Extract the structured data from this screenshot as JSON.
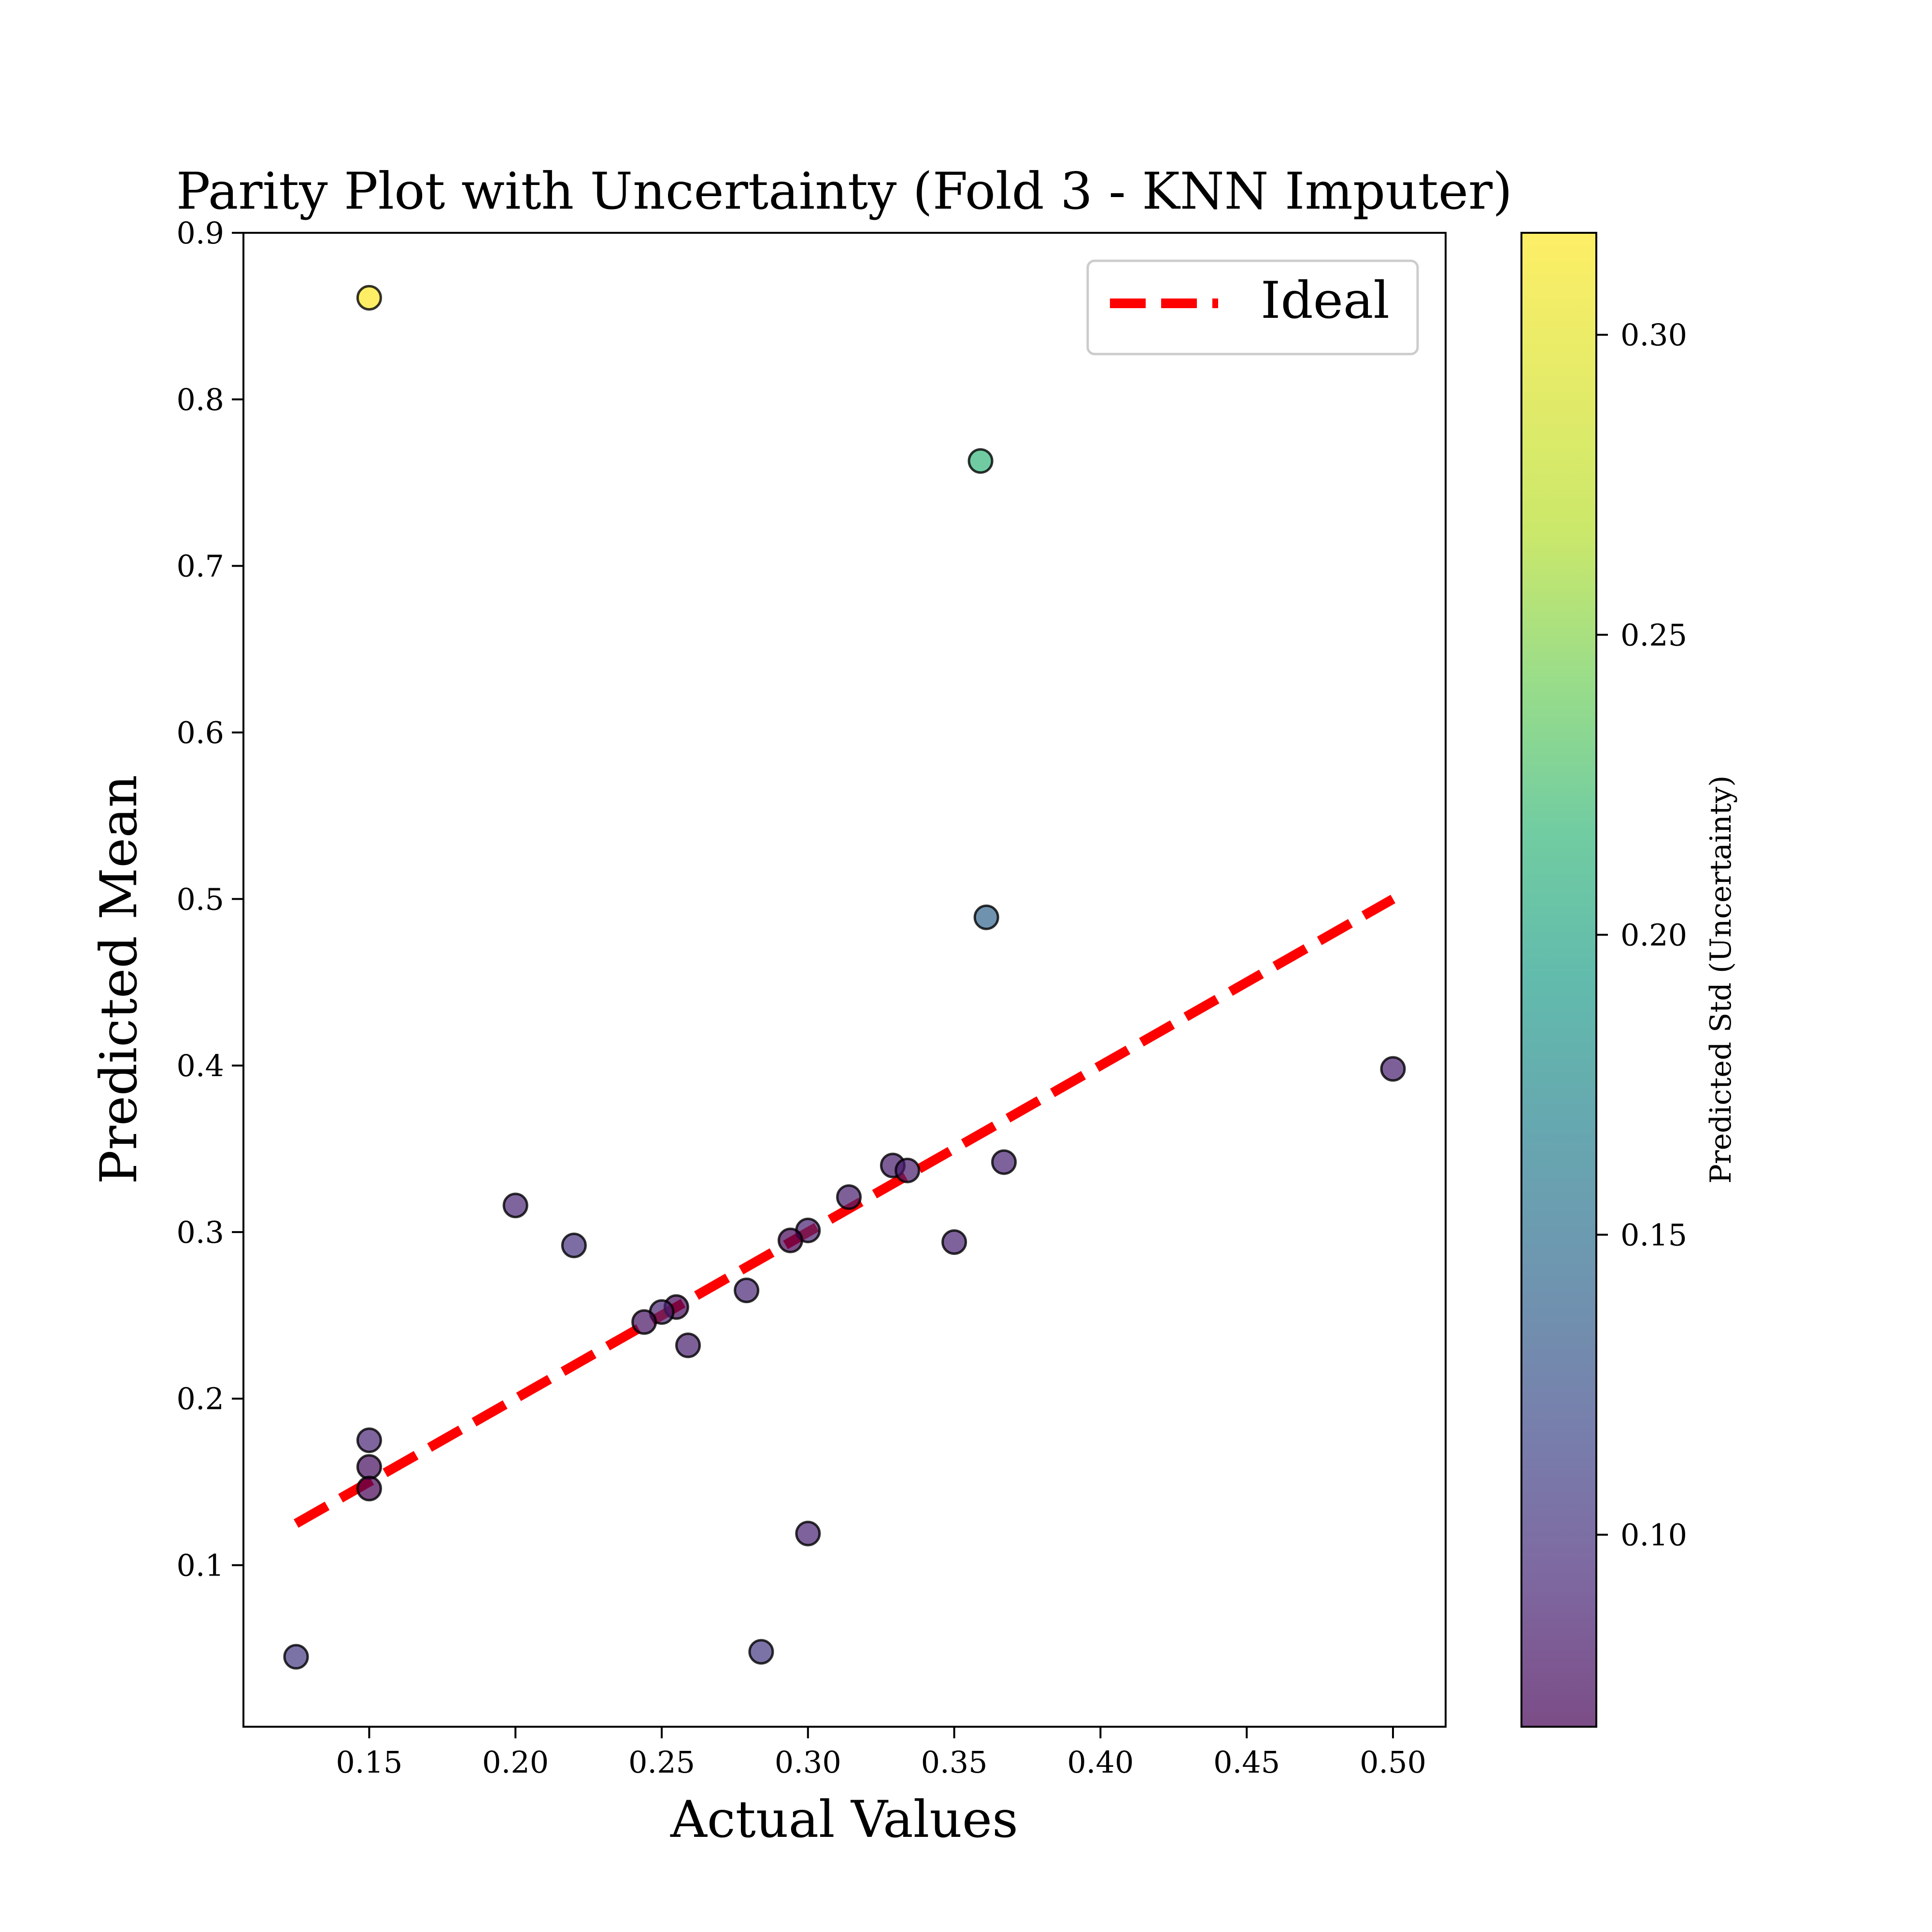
{
  "chart_data": {
    "type": "scatter",
    "title": "Parity Plot with Uncertainty (Fold 3 - KNN Imputer)",
    "xlabel": "Actual Values",
    "ylabel": "Predicted Mean",
    "xlim": [
      0.107,
      0.518
    ],
    "ylim": [
      0.003,
      0.9
    ],
    "xticks": [
      0.15,
      0.2,
      0.25,
      0.3,
      0.35,
      0.4,
      0.45,
      0.5
    ],
    "xtick_labels": [
      "0.15",
      "0.20",
      "0.25",
      "0.30",
      "0.35",
      "0.40",
      "0.45",
      "0.50"
    ],
    "yticks": [
      0.1,
      0.2,
      0.3,
      0.4,
      0.5,
      0.6,
      0.7,
      0.8,
      0.9
    ],
    "ytick_labels": [
      "0.1",
      "0.2",
      "0.3",
      "0.4",
      "0.5",
      "0.6",
      "0.7",
      "0.8",
      "0.9"
    ],
    "grid": false,
    "legend": {
      "position": "top-right",
      "entries": [
        "Ideal"
      ]
    },
    "ideal_line": {
      "x": [
        0.125,
        0.5
      ],
      "y": [
        0.125,
        0.5
      ],
      "color": "#ff0000",
      "style": "dashed"
    },
    "colorbar": {
      "label": "Predicted Std (Uncertainty)",
      "colormap": "viridis",
      "range": [
        0.068,
        0.317
      ],
      "ticks": [
        0.1,
        0.15,
        0.2,
        0.25,
        0.3
      ],
      "tick_labels": [
        "0.10",
        "0.15",
        "0.20",
        "0.25",
        "0.30"
      ]
    },
    "points": [
      {
        "x": 0.15,
        "y": 0.861,
        "std": 0.316
      },
      {
        "x": 0.359,
        "y": 0.763,
        "std": 0.215
      },
      {
        "x": 0.361,
        "y": 0.489,
        "std": 0.14
      },
      {
        "x": 0.5,
        "y": 0.398,
        "std": 0.085
      },
      {
        "x": 0.367,
        "y": 0.342,
        "std": 0.088
      },
      {
        "x": 0.329,
        "y": 0.34,
        "std": 0.083
      },
      {
        "x": 0.334,
        "y": 0.337,
        "std": 0.084
      },
      {
        "x": 0.314,
        "y": 0.321,
        "std": 0.085
      },
      {
        "x": 0.3,
        "y": 0.301,
        "std": 0.088
      },
      {
        "x": 0.294,
        "y": 0.295,
        "std": 0.07
      },
      {
        "x": 0.35,
        "y": 0.294,
        "std": 0.088
      },
      {
        "x": 0.2,
        "y": 0.316,
        "std": 0.09
      },
      {
        "x": 0.22,
        "y": 0.292,
        "std": 0.1
      },
      {
        "x": 0.279,
        "y": 0.265,
        "std": 0.09
      },
      {
        "x": 0.255,
        "y": 0.255,
        "std": 0.072
      },
      {
        "x": 0.25,
        "y": 0.252,
        "std": 0.09
      },
      {
        "x": 0.244,
        "y": 0.246,
        "std": 0.078
      },
      {
        "x": 0.259,
        "y": 0.232,
        "std": 0.085
      },
      {
        "x": 0.15,
        "y": 0.175,
        "std": 0.09
      },
      {
        "x": 0.15,
        "y": 0.159,
        "std": 0.075
      },
      {
        "x": 0.15,
        "y": 0.146,
        "std": 0.068
      },
      {
        "x": 0.3,
        "y": 0.119,
        "std": 0.088
      },
      {
        "x": 0.284,
        "y": 0.048,
        "std": 0.105
      },
      {
        "x": 0.125,
        "y": 0.045,
        "std": 0.105
      }
    ]
  }
}
